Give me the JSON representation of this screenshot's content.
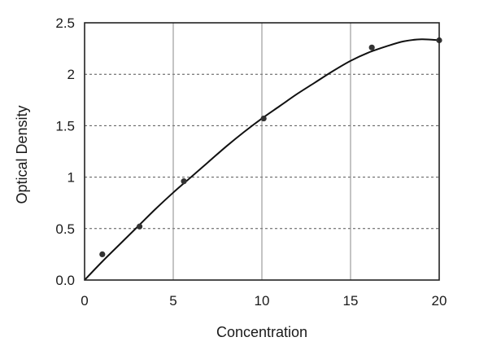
{
  "chart_data": {
    "type": "scatter",
    "title": "",
    "xlabel": "Concentration",
    "ylabel": "Optical Density",
    "xlim": [
      0,
      20
    ],
    "ylim": [
      0,
      2.5
    ],
    "x_ticks": [
      0,
      5,
      10,
      15,
      20
    ],
    "x_tick_labels": [
      "0",
      "5",
      "10",
      "15",
      "20"
    ],
    "y_ticks": [
      0,
      0.5,
      1,
      1.5,
      2,
      2.5
    ],
    "y_tick_labels": [
      "0.0",
      "0.5",
      "1",
      "1.5",
      "2",
      "2.5"
    ],
    "grid": true,
    "legend": "none",
    "points": [
      {
        "x": 1.0,
        "y": 0.25
      },
      {
        "x": 3.1,
        "y": 0.52
      },
      {
        "x": 5.6,
        "y": 0.96
      },
      {
        "x": 10.1,
        "y": 1.57
      },
      {
        "x": 16.2,
        "y": 2.26
      },
      {
        "x": 20.0,
        "y": 2.33
      }
    ],
    "fit_curve": {
      "x": [
        0,
        1,
        2,
        3,
        4,
        5,
        6,
        7,
        8,
        9,
        10,
        11,
        12,
        13,
        14,
        15,
        16,
        17,
        18,
        19,
        20
      ],
      "y": [
        0.0,
        0.18,
        0.35,
        0.52,
        0.69,
        0.85,
        1.0,
        1.15,
        1.3,
        1.44,
        1.57,
        1.69,
        1.81,
        1.92,
        2.03,
        2.13,
        2.21,
        2.27,
        2.32,
        2.34,
        2.33
      ]
    },
    "colors": {
      "curve": "#111111",
      "points": "#333333",
      "grid": "#555555"
    }
  }
}
